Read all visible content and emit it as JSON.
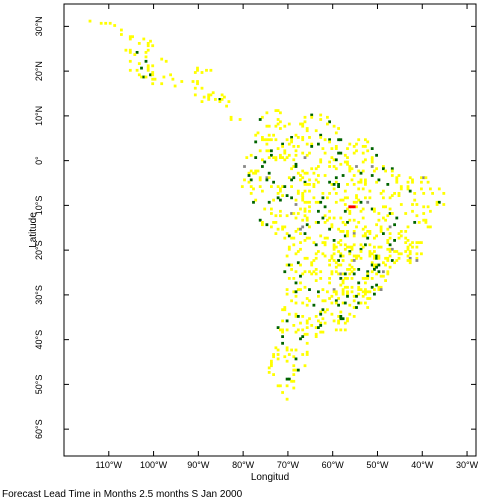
{
  "map": {
    "xlabel": "Longitud",
    "ylabel": "Latitude",
    "lon_range": [
      -120,
      -28
    ],
    "lat_range": [
      -66,
      35
    ],
    "lon_ticks": [
      {
        "value": -110,
        "label": "110°W"
      },
      {
        "value": -100,
        "label": "100°W"
      },
      {
        "value": -90,
        "label": "90°W"
      },
      {
        "value": -80,
        "label": "80°W"
      },
      {
        "value": -70,
        "label": "70°W"
      },
      {
        "value": -60,
        "label": "60°W"
      },
      {
        "value": -50,
        "label": "50°W"
      },
      {
        "value": -40,
        "label": "40°W"
      },
      {
        "value": -30,
        "label": "30°W"
      }
    ],
    "lat_ticks": [
      {
        "value": 30,
        "label": "30°N"
      },
      {
        "value": 20,
        "label": "20°N"
      },
      {
        "value": 10,
        "label": "10°N"
      },
      {
        "value": 0,
        "label": "0°"
      },
      {
        "value": -10,
        "label": "10°S"
      },
      {
        "value": -20,
        "label": "20°S"
      },
      {
        "value": -30,
        "label": "30°S"
      },
      {
        "value": -40,
        "label": "40°S"
      },
      {
        "value": -50,
        "label": "50°S"
      },
      {
        "value": -60,
        "label": "60°S"
      }
    ],
    "colors": {
      "yellow": "#ffff00",
      "green": "#006400",
      "gray": "#888888",
      "red": "#ff0000",
      "frame": "#000000"
    }
  },
  "caption": "Forecast Lead Time in Months 2.5 months S Jan 2000"
}
